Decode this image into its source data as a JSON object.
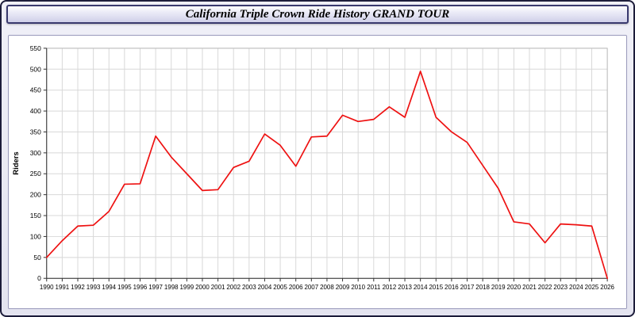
{
  "window": {
    "title": "California Triple Crown Ride History GRAND TOUR"
  },
  "chart_data": {
    "type": "line",
    "title": "California Triple Crown Ride History GRAND TOUR",
    "xlabel": "",
    "ylabel": "Riders",
    "ylim": [
      0,
      550
    ],
    "ytick_step": 50,
    "grid": true,
    "legend_position": "none",
    "line_color": "#ee1111",
    "categories": [
      "1990",
      "1991",
      "1992",
      "1993",
      "1994",
      "1995",
      "1996",
      "1997",
      "1998",
      "1999",
      "2000",
      "2001",
      "2002",
      "2003",
      "2004",
      "2005",
      "2006",
      "2007",
      "2008",
      "2009",
      "2010",
      "2011",
      "2012",
      "2013",
      "2014",
      "2015",
      "2016",
      "2017",
      "2018",
      "2019",
      "2020",
      "2021",
      "2022",
      "2023",
      "2024",
      "2025",
      "2026"
    ],
    "series": [
      {
        "name": "Riders",
        "values": [
          50,
          90,
          125,
          127,
          160,
          225,
          226,
          340,
          290,
          250,
          210,
          212,
          265,
          280,
          345,
          318,
          268,
          338,
          340,
          390,
          375,
          380,
          410,
          385,
          495,
          385,
          350,
          325,
          270,
          215,
          135,
          130,
          85,
          130,
          128,
          125,
          0
        ]
      }
    ]
  }
}
